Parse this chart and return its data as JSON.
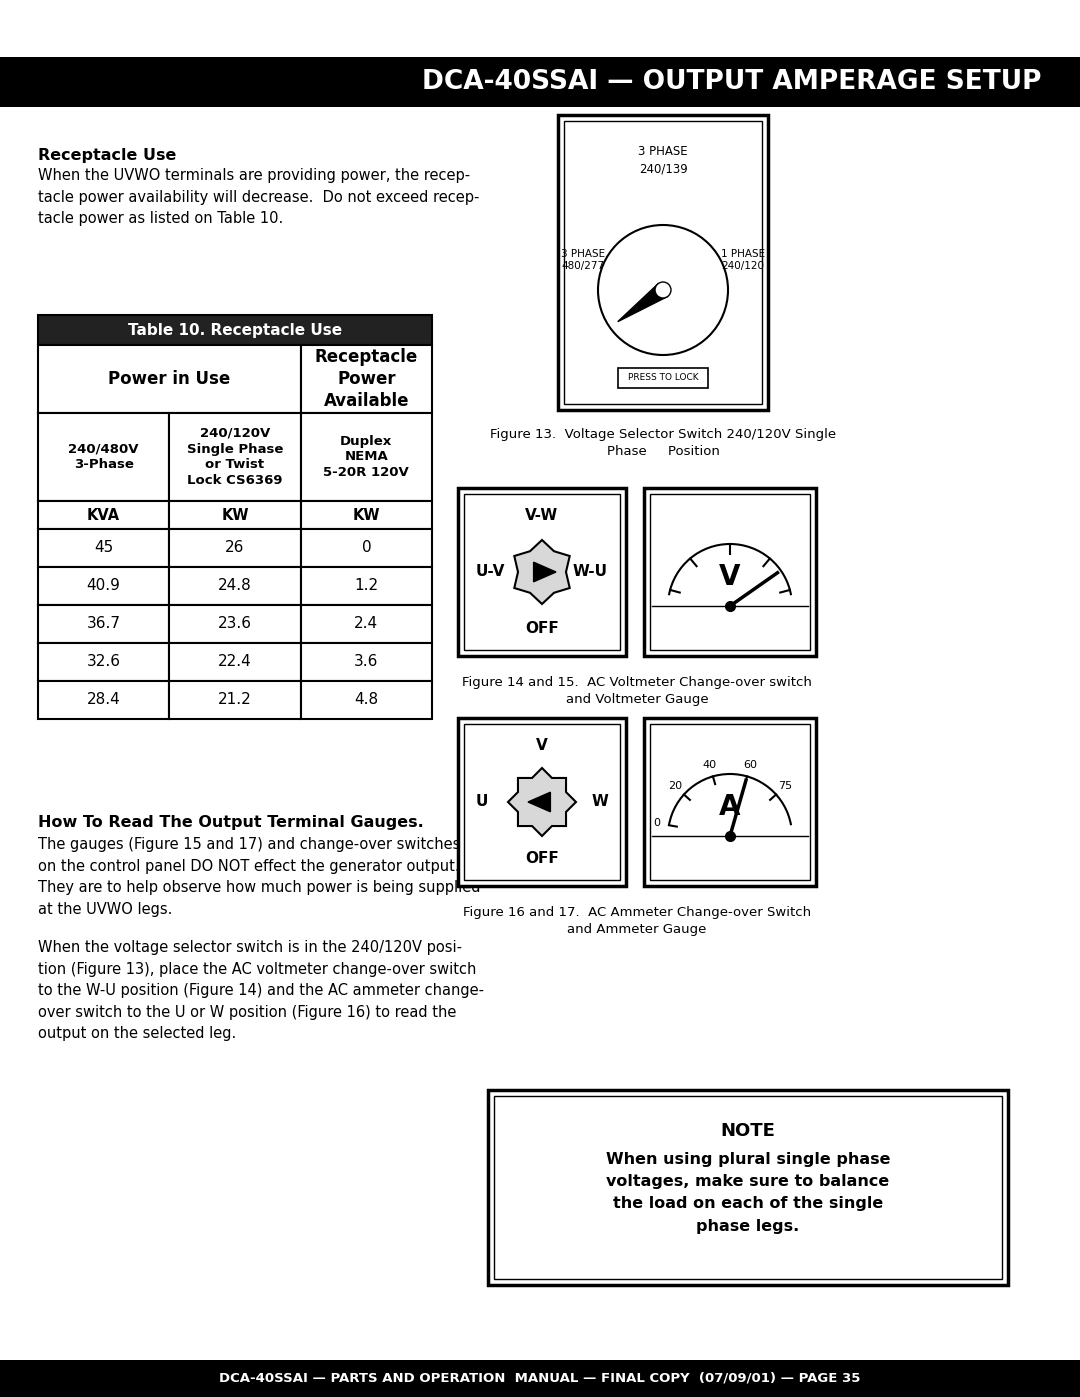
{
  "title": "DCA-40SSAI — OUTPUT AMPERAGE SETUP",
  "footer": "DCA-40SSAI — PARTS AND OPERATION  MANUAL — FINAL COPY  (07/09/01) — PAGE 35",
  "receptacle_use_heading": "Receptacle Use",
  "receptacle_use_text": "When the UVWO terminals are providing power, the recep-\ntacle power availability will decrease.  Do not exceed recep-\ntacle power as listed on Table 10.",
  "table_title": "Table 10. Receptacle Use",
  "col_group_headers": [
    "Power in Use",
    "Receptacle\nPower\nAvailable"
  ],
  "sub_col_headers": [
    "240/480V\n3-Phase",
    "240/120V\nSingle Phase\nor Twist\nLock CS6369",
    "Duplex\nNEMA\n5-20R 120V"
  ],
  "unit_headers": [
    "KVA",
    "KW",
    "KW"
  ],
  "table_data": [
    [
      "45",
      "26",
      "0"
    ],
    [
      "40.9",
      "24.8",
      "1.2"
    ],
    [
      "36.7",
      "23.6",
      "2.4"
    ],
    [
      "32.6",
      "22.4",
      "3.6"
    ],
    [
      "28.4",
      "21.2",
      "4.8"
    ]
  ],
  "how_to_read_heading": "How To Read The Output Terminal Gauges.",
  "how_to_read_text1": "The gauges (Figure 15 and 17) and change-over switches\non the control panel DO NOT effect the generator output.\nThey are to help observe how much power is being supplied\nat the UVWO legs.",
  "how_to_read_text2": "When the voltage selector switch is in the 240/120V posi-\ntion (Figure 13), place the AC voltmeter change-over switch\nto the W-U position (Figure 14) and the AC ammeter change-\nover switch to the U or W position (Figure 16) to read the\noutput on the selected leg.",
  "fig13_label_top": "3 PHASE\n240/139",
  "fig13_label_left": "3 PHASE\n480/277",
  "fig13_label_right": "1 PHASE\n240/120",
  "fig13_btn": "PRESS TO LOCK",
  "fig13_caption": "Figure 13.  Voltage Selector Switch 240/120V Single\nPhase     Position",
  "fig14_labels": [
    "V-W",
    "U-V",
    "W-U",
    "OFF"
  ],
  "fig14_15_caption": "Figure 14 and 15.  AC Voltmeter Change-over switch\nand Voltmeter Gauge",
  "fig16_labels": [
    "V",
    "U",
    "W",
    "OFF"
  ],
  "ammeter_scale": [
    "0",
    "20",
    "40",
    "60",
    "75"
  ],
  "fig16_17_caption": "Figure 16 and 17.  AC Ammeter Change-over Switch\nand Ammeter Gauge",
  "note_title": "NOTE",
  "note_text": "When using plural single phase\nvoltages, make sure to balance\nthe load on each of the single\nphase legs.",
  "bg_color": "#ffffff"
}
